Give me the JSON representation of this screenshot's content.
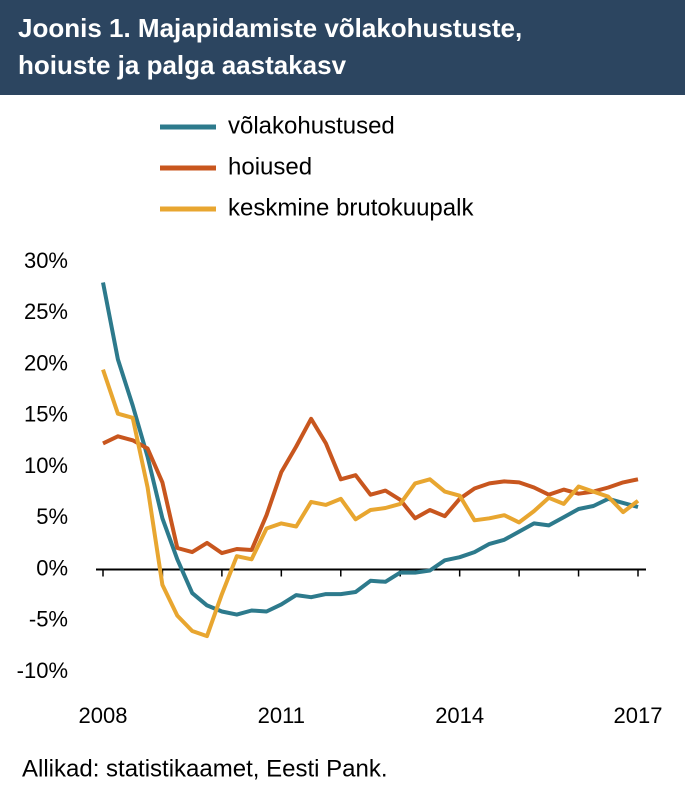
{
  "chart_data": {
    "type": "line",
    "title": "Joonis 1. Majapidamiste võlakohustuste, hoiuste ja palga aastakasv",
    "source": "Allikad: statistikaamet, Eesti Pank.",
    "categories": [
      "2008",
      null,
      null,
      null,
      null,
      null,
      null,
      null,
      null,
      null,
      null,
      null,
      "2011",
      null,
      null,
      null,
      null,
      null,
      null,
      null,
      null,
      null,
      null,
      null,
      "2014",
      null,
      null,
      null,
      null,
      null,
      null,
      null,
      null,
      null,
      null,
      null,
      "2017"
    ],
    "series": [
      {
        "name": "võlakohustused",
        "color": "#2d7a8c",
        "values": [
          28,
          20.5,
          16,
          11,
          5,
          1,
          -2.3,
          -3.5,
          -4.1,
          -4.4,
          -4.0,
          -4.1,
          -3.4,
          -2.5,
          -2.7,
          -2.4,
          -2.4,
          -2.2,
          -1.1,
          -1.2,
          -0.3,
          -0.3,
          -0.1,
          0.9,
          1.2,
          1.7,
          2.5,
          2.9,
          3.7,
          4.5,
          4.3,
          5.1,
          5.9,
          6.2,
          6.9,
          6.5,
          6.1
        ]
      },
      {
        "name": "hoiused",
        "color": "#c8561e",
        "values": [
          12.3,
          13.0,
          12.6,
          11.8,
          8.5,
          2.1,
          1.7,
          2.6,
          1.6,
          2.0,
          1.9,
          5.3,
          9.5,
          12.0,
          14.7,
          12.3,
          8.8,
          9.2,
          7.3,
          7.7,
          6.8,
          5.0,
          5.8,
          5.2,
          6.9,
          7.9,
          8.4,
          8.6,
          8.5,
          8.0,
          7.3,
          7.8,
          7.4,
          7.6,
          8.0,
          8.5,
          8.8
        ]
      },
      {
        "name": "keskmine brutokuupalk",
        "color": "#e8a630",
        "values": [
          19.5,
          15.2,
          14.8,
          8.0,
          -1.5,
          -4.5,
          -6.0,
          -6.5,
          -2.4,
          1.3,
          1.0,
          4.0,
          4.5,
          4.2,
          6.6,
          6.3,
          6.9,
          4.9,
          5.8,
          6.0,
          6.4,
          8.4,
          8.8,
          7.6,
          7.2,
          4.8,
          5.0,
          5.3,
          4.6,
          5.7,
          7.0,
          6.4,
          8.1,
          7.6,
          7.1,
          5.6,
          6.7
        ]
      }
    ],
    "ylim": [
      -10,
      30
    ],
    "yticks": [
      {
        "value": -10,
        "label": "-10%"
      },
      {
        "value": -5,
        "label": "-5%"
      },
      {
        "value": 0,
        "label": "0%"
      },
      {
        "value": 5,
        "label": "5%"
      },
      {
        "value": 10,
        "label": "10%"
      },
      {
        "value": 15,
        "label": "15%"
      },
      {
        "value": 20,
        "label": "20%"
      },
      {
        "value": 25,
        "label": "25%"
      },
      {
        "value": 30,
        "label": "30%"
      }
    ],
    "grid": false
  }
}
